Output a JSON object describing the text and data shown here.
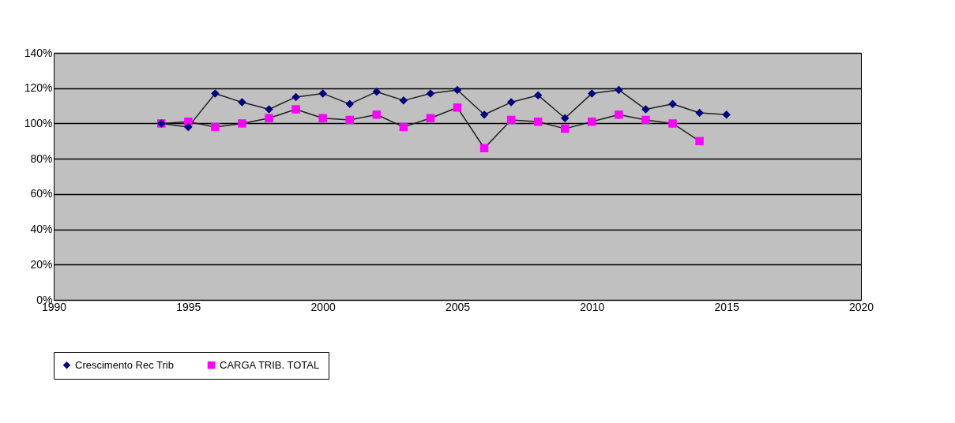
{
  "chart_data": {
    "type": "line",
    "x": [
      1994,
      1995,
      1996,
      1997,
      1998,
      1999,
      2000,
      2001,
      2002,
      2003,
      2004,
      2005,
      2006,
      2007,
      2008,
      2009,
      2010,
      2011,
      2012,
      2013,
      2014,
      2015
    ],
    "series": [
      {
        "name": "Crescimento Rec Trib",
        "color": "#000080",
        "marker": "diamond",
        "values": [
          100,
          98,
          117,
          112,
          108,
          115,
          117,
          111,
          118,
          113,
          117,
          119,
          105,
          112,
          116,
          103,
          117,
          119,
          108,
          111,
          106,
          105
        ]
      },
      {
        "name": "CARGA TRIB. TOTAL",
        "color": "#ff00ff",
        "marker": "square",
        "x": [
          1994,
          1995,
          1996,
          1997,
          1998,
          1999,
          2000,
          2001,
          2002,
          2003,
          2004,
          2005,
          2006,
          2007,
          2008,
          2009,
          2010,
          2011,
          2012,
          2013,
          2014
        ],
        "values": [
          100,
          101,
          98,
          100,
          103,
          108,
          103,
          102,
          105,
          98,
          103,
          109,
          86,
          102,
          101,
          97,
          101,
          105,
          102,
          100,
          90
        ]
      }
    ],
    "xlim": [
      1990,
      2020
    ],
    "xticks": [
      1990,
      1995,
      2000,
      2005,
      2010,
      2015,
      2020
    ],
    "ylim": [
      0,
      140
    ],
    "yticks": [
      {
        "value": 0,
        "label": "0%"
      },
      {
        "value": 20,
        "label": "20%"
      },
      {
        "value": 40,
        "label": "40%"
      },
      {
        "value": 60,
        "label": "60%"
      },
      {
        "value": 80,
        "label": "80%"
      },
      {
        "value": 100,
        "label": "100%"
      },
      {
        "value": 120,
        "label": "120%"
      },
      {
        "value": 140,
        "label": "140%"
      }
    ],
    "grid": "y",
    "legend": "bottom"
  }
}
